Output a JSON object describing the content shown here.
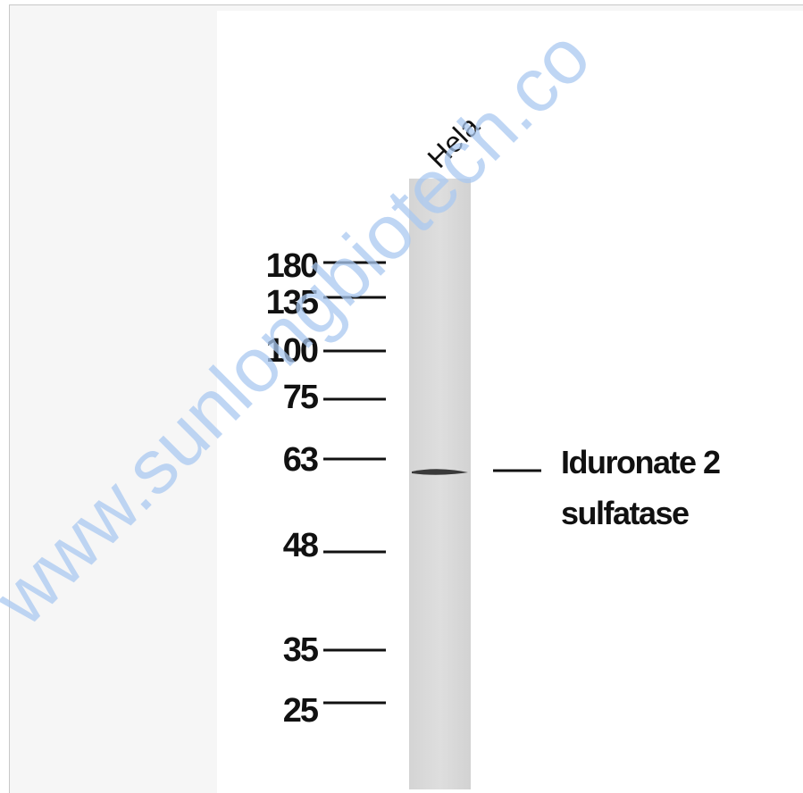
{
  "lane_label": "Hela",
  "markers": [
    "180",
    "135",
    "100",
    "75",
    "63",
    "48",
    "35",
    "25"
  ],
  "target_label": [
    "Iduronate 2",
    "sulfatase"
  ],
  "watermark": "www.sunlongbiotech.co"
}
